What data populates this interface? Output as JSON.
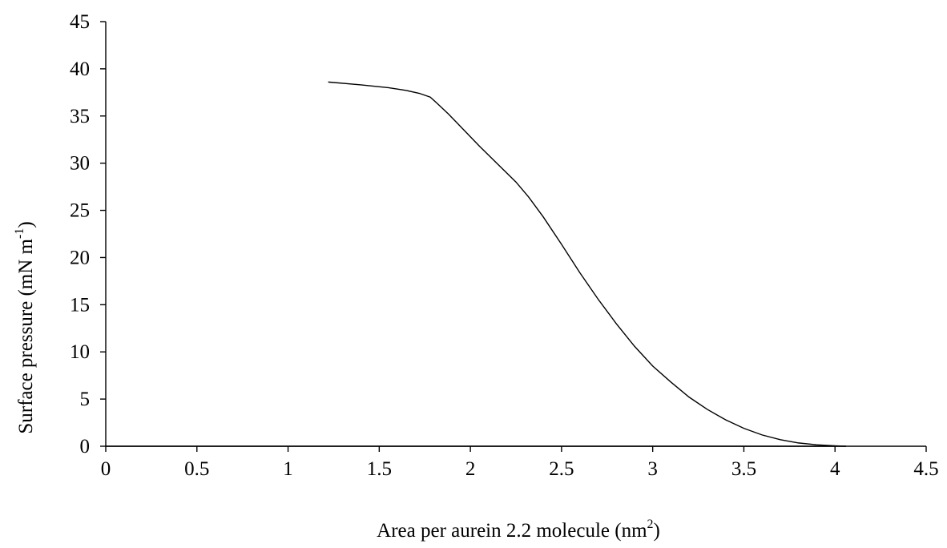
{
  "chart_data": {
    "type": "line",
    "title": "",
    "xlabel_main": "Area per aurein 2.2 molecule (nm",
    "xlabel_sup": "2",
    "xlabel_end": ")",
    "ylabel_main": "Surface pressure (mN m",
    "ylabel_sup": "-1",
    "ylabel_end": ")",
    "xlim": [
      0,
      4.5
    ],
    "ylim": [
      0,
      45
    ],
    "xticks": [
      "0",
      "0.5",
      "1",
      "1.5",
      "2",
      "2.5",
      "3",
      "3.5",
      "4",
      "4.5"
    ],
    "yticks": [
      "0",
      "5",
      "10",
      "15",
      "20",
      "25",
      "30",
      "35",
      "40",
      "45"
    ],
    "grid": false,
    "legend": "none",
    "series": [
      {
        "color": "#000000",
        "x": [
          1.22,
          1.4,
          1.55,
          1.65,
          1.72,
          1.78,
          1.82,
          1.88,
          1.95,
          2.05,
          2.15,
          2.25,
          2.32,
          2.4,
          2.5,
          2.6,
          2.7,
          2.8,
          2.9,
          3.0,
          3.1,
          3.2,
          3.3,
          3.4,
          3.5,
          3.6,
          3.7,
          3.8,
          3.9,
          4.0,
          4.06
        ],
        "y": [
          38.6,
          38.3,
          38.0,
          37.7,
          37.4,
          37.0,
          36.3,
          35.2,
          33.8,
          31.8,
          29.9,
          28.0,
          26.4,
          24.3,
          21.4,
          18.4,
          15.6,
          13.0,
          10.6,
          8.5,
          6.8,
          5.2,
          3.9,
          2.8,
          1.9,
          1.2,
          0.7,
          0.35,
          0.15,
          0.05,
          0.0
        ]
      },
      {
        "color": "#000000",
        "x": [
          0,
          4.06
        ],
        "y": [
          0,
          0
        ]
      }
    ]
  }
}
